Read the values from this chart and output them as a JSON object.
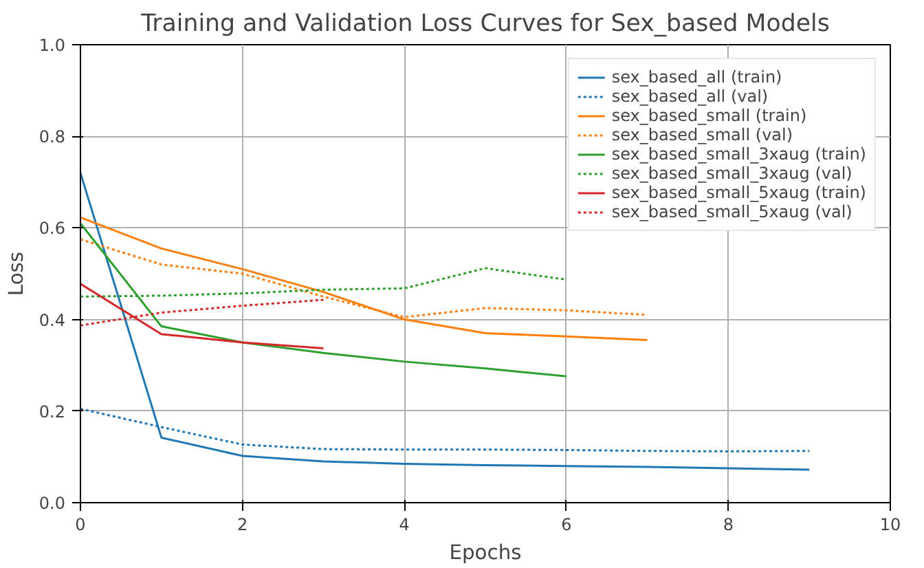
{
  "chart_data": {
    "type": "line",
    "title": "Training and Validation Loss Curves for Sex_based Models",
    "xlabel": "Epochs",
    "ylabel": "Loss",
    "xlim": [
      0,
      10
    ],
    "ylim": [
      0,
      1.0
    ],
    "xticks": [
      0,
      2,
      4,
      6,
      8,
      10
    ],
    "yticks": [
      {
        "value": 0,
        "label": "0.0"
      },
      0.2,
      0.4,
      0.6,
      0.8,
      {
        "value": 1,
        "label": "1.0"
      }
    ],
    "grid": true,
    "legend": "top right",
    "series": [
      {
        "name": "sex_based_all (train)",
        "color": "#1f77b4",
        "line_style": "solid",
        "x": [
          0,
          1,
          2,
          3,
          4,
          5,
          6,
          7,
          8,
          9
        ],
        "values": [
          0.72,
          0.142,
          0.102,
          0.09,
          0.085,
          0.082,
          0.08,
          0.078,
          0.075,
          0.072
        ]
      },
      {
        "name": "sex_based_all (val)",
        "color": "#1f77b4",
        "line_style": "dotted",
        "x": [
          0,
          1,
          2,
          3,
          4,
          5,
          6,
          7,
          8,
          9
        ],
        "values": [
          0.205,
          0.165,
          0.127,
          0.117,
          0.116,
          0.116,
          0.115,
          0.113,
          0.112,
          0.113
        ]
      },
      {
        "name": "sex_based_small (train)",
        "color": "#ff7f0e",
        "line_style": "solid",
        "x": [
          0,
          1,
          2,
          3,
          4,
          5,
          6,
          7
        ],
        "values": [
          0.623,
          0.555,
          0.51,
          0.46,
          0.4,
          0.37,
          0.363,
          0.355
        ]
      },
      {
        "name": "sex_based_small (val)",
        "color": "#ff7f0e",
        "line_style": "dotted",
        "x": [
          0,
          1,
          2,
          3,
          4,
          5,
          6,
          7
        ],
        "values": [
          0.575,
          0.52,
          0.5,
          0.45,
          0.405,
          0.425,
          0.42,
          0.41
        ]
      },
      {
        "name": "sex_based_small_3xaug (train)",
        "color": "#2ca02c",
        "line_style": "solid",
        "x": [
          0,
          1,
          2,
          3,
          4,
          5,
          6
        ],
        "values": [
          0.61,
          0.385,
          0.35,
          0.327,
          0.308,
          0.293,
          0.276
        ]
      },
      {
        "name": "sex_based_small_3xaug (val)",
        "color": "#2ca02c",
        "line_style": "dotted",
        "x": [
          0,
          1,
          2,
          3,
          4,
          5,
          6
        ],
        "values": [
          0.45,
          0.452,
          0.457,
          0.465,
          0.468,
          0.512,
          0.487
        ]
      },
      {
        "name": "sex_based_small_5xaug (train)",
        "color": "#d62728",
        "line_style": "solid",
        "x": [
          0,
          1,
          2,
          3
        ],
        "values": [
          0.478,
          0.368,
          0.35,
          0.337
        ]
      },
      {
        "name": "sex_based_small_5xaug (val)",
        "color": "#d62728",
        "line_style": "dotted",
        "x": [
          0,
          1,
          2,
          3
        ],
        "values": [
          0.387,
          0.415,
          0.43,
          0.443
        ]
      }
    ]
  }
}
